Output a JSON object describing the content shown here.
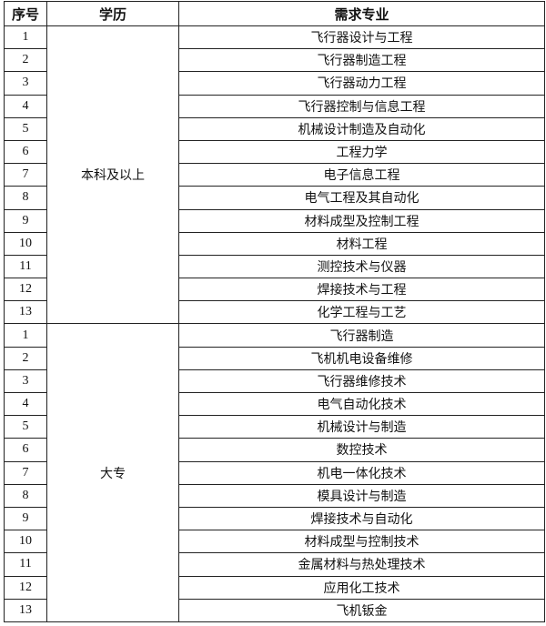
{
  "headers": {
    "index": "序号",
    "education": "学历",
    "major": "需求专业"
  },
  "groups": [
    {
      "education": "本科及以上",
      "rows": [
        {
          "index": "1",
          "major": "飞行器设计与工程"
        },
        {
          "index": "2",
          "major": "飞行器制造工程"
        },
        {
          "index": "3",
          "major": "飞行器动力工程"
        },
        {
          "index": "4",
          "major": "飞行器控制与信息工程"
        },
        {
          "index": "5",
          "major": "机械设计制造及自动化"
        },
        {
          "index": "6",
          "major": "工程力学"
        },
        {
          "index": "7",
          "major": "电子信息工程"
        },
        {
          "index": "8",
          "major": "电气工程及其自动化"
        },
        {
          "index": "9",
          "major": "材料成型及控制工程"
        },
        {
          "index": "10",
          "major": "材料工程"
        },
        {
          "index": "11",
          "major": "测控技术与仪器"
        },
        {
          "index": "12",
          "major": "焊接技术与工程"
        },
        {
          "index": "13",
          "major": "化学工程与工艺"
        }
      ]
    },
    {
      "education": "大专",
      "rows": [
        {
          "index": "1",
          "major": "飞行器制造"
        },
        {
          "index": "2",
          "major": "飞机机电设备维修"
        },
        {
          "index": "3",
          "major": "飞行器维修技术"
        },
        {
          "index": "4",
          "major": "电气自动化技术"
        },
        {
          "index": "5",
          "major": "机械设计与制造"
        },
        {
          "index": "6",
          "major": "数控技术"
        },
        {
          "index": "7",
          "major": "机电一体化技术"
        },
        {
          "index": "8",
          "major": "模具设计与制造"
        },
        {
          "index": "9",
          "major": "焊接技术与自动化"
        },
        {
          "index": "10",
          "major": "材料成型与控制技术"
        },
        {
          "index": "11",
          "major": "金属材料与热处理技术"
        },
        {
          "index": "12",
          "major": "应用化工技术"
        },
        {
          "index": "13",
          "major": "飞机钣金"
        }
      ]
    }
  ]
}
